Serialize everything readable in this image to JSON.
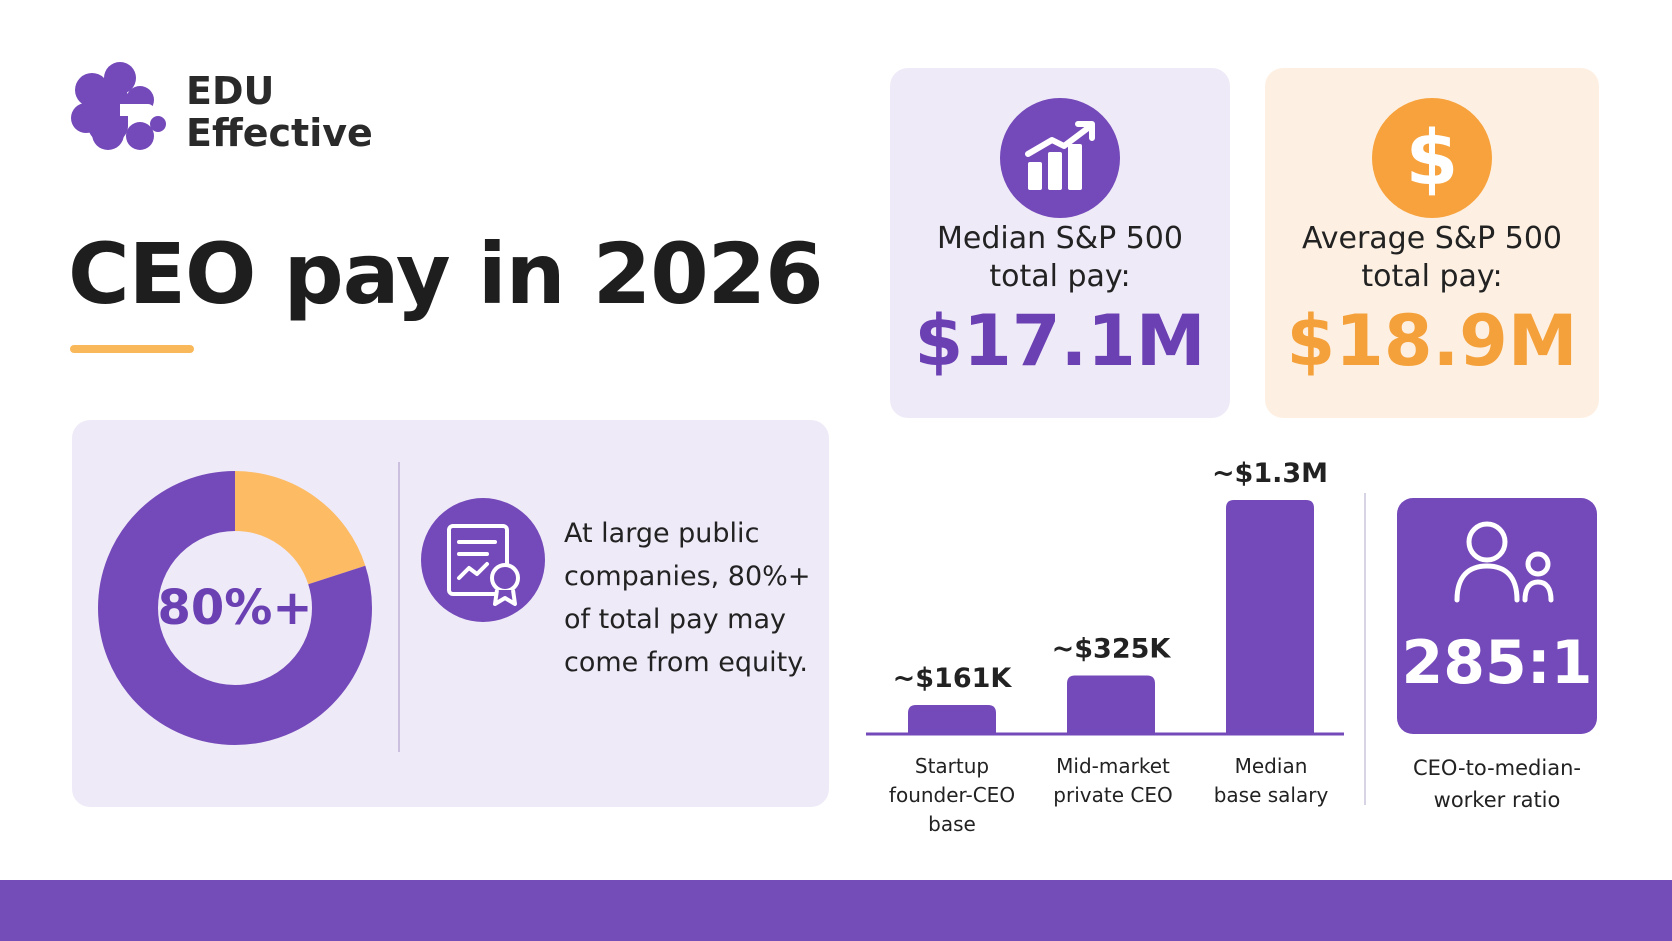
{
  "brand": {
    "line1": "EDU",
    "line2": "Effective",
    "accent": "#7449b9"
  },
  "title": "CEO pay in 2026",
  "stats": [
    {
      "label_line1": "Median S&P 500",
      "label_line2": "total pay:",
      "value": "$17.1M",
      "icon": "rising-bar-chart-icon",
      "color": "#7449b9"
    },
    {
      "label_line1": "Average S&P 500",
      "label_line2": "total pay:",
      "value": "$18.9M",
      "icon": "dollar-sign-icon",
      "color": "#f7a23c"
    }
  ],
  "equity": {
    "donut_label": "80%+",
    "text": "At large public companies, 80%+ of total pay may come from equity.",
    "icon": "certificate-icon"
  },
  "chart_data": [
    {
      "type": "pie",
      "variant": "donut",
      "center_label": "80%+",
      "values": [
        80,
        20
      ],
      "colors": [
        "#7449b9",
        "#fdbb63"
      ]
    },
    {
      "type": "bar",
      "categories": [
        [
          "Startup",
          "founder-CEO",
          "base"
        ],
        [
          "Mid-market",
          "private CEO"
        ],
        [
          "Median",
          "base salary"
        ]
      ],
      "values": [
        161000,
        325000,
        1300000
      ],
      "data_labels": [
        "~$161K",
        "~$325K",
        "~$1.3M"
      ],
      "color": "#7449b9",
      "ylim": [
        0,
        1300000
      ],
      "grid": false
    }
  ],
  "ratio": {
    "value": "285:1",
    "label_line1": "CEO-to-median-",
    "label_line2": "worker ratio",
    "icon": "adult-and-child-icon"
  }
}
